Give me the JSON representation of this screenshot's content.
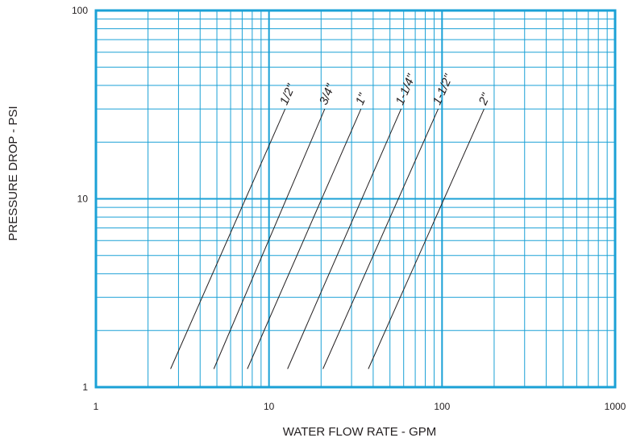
{
  "chart_data": {
    "type": "line",
    "title": "",
    "xlabel": "WATER FLOW RATE - GPM",
    "ylabel": "PRESSURE DROP - PSI",
    "x_scale": "log",
    "y_scale": "log",
    "xlim": [
      1,
      1000
    ],
    "ylim": [
      1,
      100
    ],
    "grid": true,
    "x_tick_labels": [
      "1",
      "10",
      "100",
      "1000"
    ],
    "y_tick_labels": [
      "1",
      "10",
      "100"
    ],
    "grid_color": "#1ba1d6",
    "line_color": "#231f20",
    "series": [
      {
        "name": "1/2\"",
        "x": [
          2.7,
          12.4
        ],
        "y": [
          1.25,
          30
        ]
      },
      {
        "name": "3/4\"",
        "x": [
          4.8,
          21.0
        ],
        "y": [
          1.25,
          30
        ]
      },
      {
        "name": "1\"",
        "x": [
          7.5,
          34.0
        ],
        "y": [
          1.25,
          30
        ]
      },
      {
        "name": "1-1/4\"",
        "x": [
          12.8,
          58.0
        ],
        "y": [
          1.25,
          30
        ]
      },
      {
        "name": "1-1/2\"",
        "x": [
          20.5,
          95.0
        ],
        "y": [
          1.25,
          30
        ]
      },
      {
        "name": "2\"",
        "x": [
          37.5,
          175.0
        ],
        "y": [
          1.25,
          30
        ]
      }
    ]
  }
}
